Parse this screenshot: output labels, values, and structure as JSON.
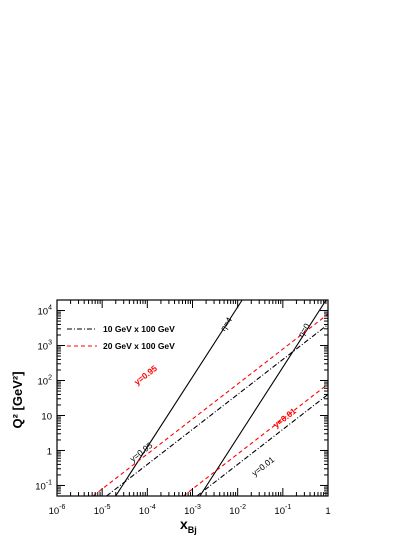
{
  "chart_data": {
    "type": "line",
    "xlabel_main": "x",
    "xlabel_sub": "Bj",
    "ylabel": "Q² [GeV²]",
    "xscale": "log",
    "yscale": "log",
    "xlim": [
      1e-06,
      1
    ],
    "ylim": [
      0.05,
      20000
    ],
    "x_ticks": [
      {
        "value": 1e-06,
        "base": "10",
        "exp": "-6"
      },
      {
        "value": 1e-05,
        "base": "10",
        "exp": "-5"
      },
      {
        "value": 0.0001,
        "base": "10",
        "exp": "-4"
      },
      {
        "value": 0.001,
        "base": "10",
        "exp": "-3"
      },
      {
        "value": 0.01,
        "base": "10",
        "exp": "-2"
      },
      {
        "value": 0.1,
        "base": "10",
        "exp": "-1"
      },
      {
        "value": 1,
        "base": "1",
        "exp": ""
      }
    ],
    "y_ticks": [
      {
        "value": 0.1,
        "base": "10",
        "exp": "-1"
      },
      {
        "value": 1,
        "base": "1",
        "exp": ""
      },
      {
        "value": 10,
        "base": "10",
        "exp": ""
      },
      {
        "value": 100,
        "base": "10",
        "exp": "2"
      },
      {
        "value": 1000,
        "base": "10",
        "exp": "3"
      },
      {
        "value": 10000,
        "base": "10",
        "exp": "4"
      }
    ],
    "legend": {
      "position": "top-left",
      "entries": [
        {
          "label": "10 GeV x 100 GeV",
          "style": "dash-dot",
          "color": "#000000"
        },
        {
          "label": "20 GeV x 100 GeV",
          "style": "dashed",
          "color": "#ff0000"
        }
      ]
    },
    "series": [
      {
        "label": "η=4",
        "style": "solid",
        "color": "#000000",
        "x": [
          1.99e-05,
          0.0126
        ],
        "y": [
          0.05,
          20000
        ]
      },
      {
        "label": "η=0",
        "style": "solid",
        "color": "#000000",
        "x": [
          0.00146,
          0.91
        ],
        "y": [
          0.05,
          20000
        ]
      },
      {
        "label": "y=0.95",
        "style": "dash-dot",
        "color": "#000000",
        "x": [
          1.25e-05,
          1
        ],
        "y": [
          0.05,
          3990
        ]
      },
      {
        "label": "y=0.01",
        "style": "dash-dot",
        "color": "#000000",
        "x": [
          0.00125,
          1
        ],
        "y": [
          0.05,
          40
        ]
      },
      {
        "label": "y=0.95",
        "style": "dashed",
        "color": "#ff0000",
        "x": [
          6.3e-06,
          1
        ],
        "y": [
          0.05,
          7900
        ]
      },
      {
        "label": "y=0.01",
        "style": "dashed",
        "color": "#ff0000",
        "x": [
          0.00063,
          1
        ],
        "y": [
          0.05,
          79
        ]
      }
    ]
  }
}
